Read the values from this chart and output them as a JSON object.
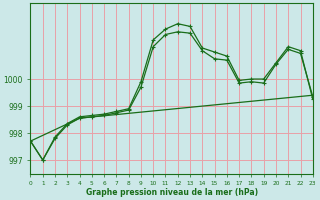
{
  "xlabel": "Graphe pression niveau de la mer (hPa)",
  "ylabel": "",
  "background_color": "#cce8e8",
  "grid_color": "#e8a0a8",
  "line_color": "#1a6e1a",
  "xlim": [
    0,
    23
  ],
  "ylim": [
    996.5,
    1002.8
  ],
  "yticks": [
    997,
    998,
    999,
    1000
  ],
  "xticks": [
    0,
    1,
    2,
    3,
    4,
    5,
    6,
    7,
    8,
    9,
    10,
    11,
    12,
    13,
    14,
    15,
    16,
    17,
    18,
    19,
    20,
    21,
    22,
    23
  ],
  "series1_x": [
    0,
    1,
    2,
    3,
    4,
    5,
    6,
    7,
    8,
    9,
    10,
    11,
    12,
    13,
    14,
    15,
    16,
    17,
    18,
    19,
    20,
    21,
    22,
    23
  ],
  "series1_y": [
    997.7,
    997.0,
    997.8,
    998.3,
    998.55,
    998.6,
    998.65,
    998.75,
    998.85,
    999.7,
    1001.2,
    1001.65,
    1001.75,
    1001.7,
    1001.05,
    1000.75,
    1000.7,
    999.85,
    999.9,
    999.85,
    1000.55,
    1001.1,
    1000.95,
    999.35
  ],
  "series2_x": [
    0,
    1,
    2,
    3,
    4,
    5,
    6,
    7,
    8,
    9,
    10,
    11,
    12,
    13,
    14,
    15,
    16,
    17,
    18,
    19,
    20,
    21,
    22,
    23
  ],
  "series2_y": [
    997.7,
    997.0,
    997.85,
    998.35,
    998.6,
    998.65,
    998.7,
    998.8,
    998.9,
    999.9,
    1001.45,
    1001.85,
    1002.05,
    1001.95,
    1001.15,
    1001.0,
    1000.85,
    999.95,
    1000.0,
    1000.0,
    1000.6,
    1001.2,
    1001.05,
    999.25
  ],
  "series3_x": [
    0,
    4,
    23
  ],
  "series3_y": [
    997.7,
    998.55,
    999.4
  ]
}
